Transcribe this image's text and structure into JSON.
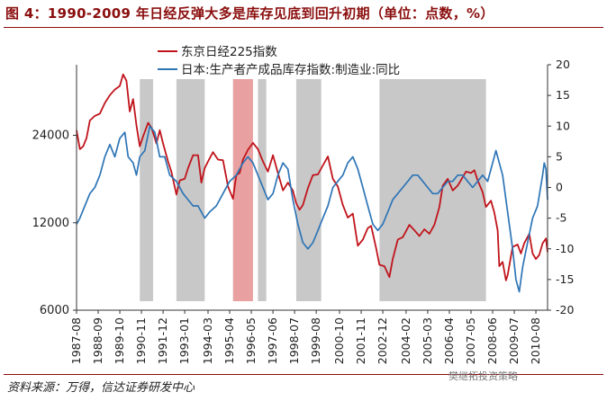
{
  "header": {
    "title": "图 4：1990-2009 年日经反弹大多是库存见底到回升初期（单位：点数，%）"
  },
  "footer": {
    "source": "资料来源：万得，信达证券研发中心",
    "watermark": "樊继拓投资策略"
  },
  "chart_data": {
    "type": "line",
    "title": "图 4：1990-2009 年日经反弹大多是库存见底到回升初期（单位：点数，%）",
    "colors": {
      "nikkei": "#c0141b",
      "inventory": "#2e75b6",
      "shade": "#c8c8c8",
      "highlight": "#e8a0a0"
    },
    "x_tick_labels": [
      "1987-08",
      "1988-09",
      "1989-10",
      "1990-11",
      "1991-12",
      "1993-01",
      "1994-03",
      "1995-04",
      "1996-05",
      "1997-06",
      "1998-07",
      "1999-08",
      "2000-10",
      "2001-11",
      "2002-12",
      "2004-02",
      "2005-03",
      "2006-04",
      "2007-05",
      "2008-06",
      "2009-07",
      "2010-08"
    ],
    "x_range": [
      "1987-08",
      "2011-03"
    ],
    "left_axis": {
      "scale": "log",
      "ticks": [
        6000,
        12000,
        24000
      ],
      "range": [
        6000,
        42000
      ]
    },
    "right_axis": {
      "ticks": [
        20,
        15,
        10,
        5,
        0,
        -5,
        -10,
        -15,
        -20
      ],
      "range": [
        -20,
        20
      ]
    },
    "legend": [
      "东京日经225指数",
      "日本:生产者产成品库存指数:制造业:同比"
    ],
    "legend_position": "top-center",
    "shaded_periods": [
      {
        "start": "1990-10",
        "end": "1991-06",
        "highlight": false
      },
      {
        "start": "1992-08",
        "end": "1994-01",
        "highlight": false
      },
      {
        "start": "1995-06",
        "end": "1996-06",
        "highlight": true
      },
      {
        "start": "1996-09",
        "end": "1997-02",
        "highlight": false
      },
      {
        "start": "1998-08",
        "end": "1999-11",
        "highlight": false
      },
      {
        "start": "2002-10",
        "end": "2008-02",
        "highlight": false
      }
    ],
    "series": [
      {
        "name": "东京日经225指数",
        "axis": "left",
        "points": [
          [
            "1987-08",
            25000
          ],
          [
            "1987-10",
            21500
          ],
          [
            "1987-12",
            22000
          ],
          [
            "1988-02",
            23500
          ],
          [
            "1988-04",
            27000
          ],
          [
            "1988-07",
            28000
          ],
          [
            "1988-10",
            28500
          ],
          [
            "1989-01",
            31000
          ],
          [
            "1989-04",
            33000
          ],
          [
            "1989-07",
            34500
          ],
          [
            "1989-10",
            35500
          ],
          [
            "1989-12",
            38900
          ],
          [
            "1990-02",
            37000
          ],
          [
            "1990-04",
            29000
          ],
          [
            "1990-06",
            32000
          ],
          [
            "1990-08",
            26000
          ],
          [
            "1990-10",
            22000
          ],
          [
            "1990-12",
            23800
          ],
          [
            "1991-03",
            26500
          ],
          [
            "1991-05",
            25500
          ],
          [
            "1991-08",
            22500
          ],
          [
            "1991-10",
            25000
          ],
          [
            "1991-12",
            22500
          ],
          [
            "1992-03",
            19500
          ],
          [
            "1992-05",
            18000
          ],
          [
            "1992-08",
            15000
          ],
          [
            "1992-10",
            16800
          ],
          [
            "1993-01",
            17000
          ],
          [
            "1993-03",
            18500
          ],
          [
            "1993-06",
            20500
          ],
          [
            "1993-09",
            20500
          ],
          [
            "1993-11",
            16500
          ],
          [
            "1994-01",
            18500
          ],
          [
            "1994-03",
            19500
          ],
          [
            "1994-06",
            21000
          ],
          [
            "1994-09",
            19800
          ],
          [
            "1994-12",
            19700
          ],
          [
            "1995-03",
            16000
          ],
          [
            "1995-06",
            14500
          ],
          [
            "1995-08",
            17500
          ],
          [
            "1995-10",
            17800
          ],
          [
            "1995-12",
            19800
          ],
          [
            "1996-03",
            21400
          ],
          [
            "1996-06",
            22600
          ],
          [
            "1996-09",
            21500
          ],
          [
            "1996-12",
            19500
          ],
          [
            "1997-03",
            18000
          ],
          [
            "1997-06",
            20500
          ],
          [
            "1997-09",
            17800
          ],
          [
            "1997-12",
            15500
          ],
          [
            "1998-03",
            16500
          ],
          [
            "1998-06",
            15500
          ],
          [
            "1998-08",
            14000
          ],
          [
            "1998-10",
            13300
          ],
          [
            "1998-12",
            13800
          ],
          [
            "1999-03",
            15800
          ],
          [
            "1999-06",
            17500
          ],
          [
            "1999-09",
            17600
          ],
          [
            "1999-12",
            18900
          ],
          [
            "2000-03",
            20300
          ],
          [
            "2000-06",
            17000
          ],
          [
            "2000-09",
            16000
          ],
          [
            "2000-12",
            13800
          ],
          [
            "2001-03",
            12500
          ],
          [
            "2001-06",
            12900
          ],
          [
            "2001-09",
            10000
          ],
          [
            "2001-12",
            10500
          ],
          [
            "2002-03",
            11500
          ],
          [
            "2002-05",
            11700
          ],
          [
            "2002-08",
            9800
          ],
          [
            "2002-10",
            8600
          ],
          [
            "2003-01",
            8500
          ],
          [
            "2003-04",
            7800
          ],
          [
            "2003-06",
            9000
          ],
          [
            "2003-09",
            10500
          ],
          [
            "2003-12",
            10700
          ],
          [
            "2004-04",
            11800
          ],
          [
            "2004-07",
            11300
          ],
          [
            "2004-10",
            10800
          ],
          [
            "2005-01",
            11400
          ],
          [
            "2005-04",
            11000
          ],
          [
            "2005-07",
            11800
          ],
          [
            "2005-10",
            13600
          ],
          [
            "2005-12",
            16100
          ],
          [
            "2006-03",
            17000
          ],
          [
            "2006-06",
            15500
          ],
          [
            "2006-09",
            16100
          ],
          [
            "2006-12",
            17200
          ],
          [
            "2007-02",
            18000
          ],
          [
            "2007-05",
            17800
          ],
          [
            "2007-07",
            18200
          ],
          [
            "2007-09",
            16800
          ],
          [
            "2007-12",
            15300
          ],
          [
            "2008-02",
            13600
          ],
          [
            "2008-05",
            14300
          ],
          [
            "2008-07",
            13000
          ],
          [
            "2008-09",
            11300
          ],
          [
            "2008-10",
            8500
          ],
          [
            "2008-12",
            8800
          ],
          [
            "2009-02",
            7600
          ],
          [
            "2009-03",
            7900
          ],
          [
            "2009-06",
            9900
          ],
          [
            "2009-09",
            10100
          ],
          [
            "2009-11",
            9400
          ],
          [
            "2010-01",
            10200
          ],
          [
            "2010-04",
            11000
          ],
          [
            "2010-06",
            9400
          ],
          [
            "2010-08",
            9000
          ],
          [
            "2010-10",
            9300
          ],
          [
            "2010-12",
            10200
          ],
          [
            "2011-02",
            10600
          ],
          [
            "2011-03",
            9500
          ]
        ]
      },
      {
        "name": "日本:生产者产成品库存指数:制造业:同比",
        "axis": "right",
        "points": [
          [
            "1987-08",
            -6
          ],
          [
            "1987-10",
            -5
          ],
          [
            "1988-01",
            -3
          ],
          [
            "1988-04",
            -1
          ],
          [
            "1988-07",
            0
          ],
          [
            "1988-10",
            2
          ],
          [
            "1989-01",
            5
          ],
          [
            "1989-04",
            7
          ],
          [
            "1989-07",
            5
          ],
          [
            "1989-10",
            8
          ],
          [
            "1990-01",
            9
          ],
          [
            "1990-03",
            5
          ],
          [
            "1990-06",
            4
          ],
          [
            "1990-08",
            2
          ],
          [
            "1990-10",
            5
          ],
          [
            "1991-01",
            6
          ],
          [
            "1991-04",
            10
          ],
          [
            "1991-07",
            9
          ],
          [
            "1991-10",
            5
          ],
          [
            "1992-01",
            5
          ],
          [
            "1992-04",
            2
          ],
          [
            "1992-08",
            1
          ],
          [
            "1992-12",
            -1
          ],
          [
            "1993-03",
            -2
          ],
          [
            "1993-06",
            -3
          ],
          [
            "1993-09",
            -3
          ],
          [
            "1994-01",
            -5
          ],
          [
            "1994-04",
            -4
          ],
          [
            "1994-08",
            -3
          ],
          [
            "1994-12",
            -1
          ],
          [
            "1995-04",
            1
          ],
          [
            "1995-08",
            2
          ],
          [
            "1995-12",
            4
          ],
          [
            "1996-03",
            5
          ],
          [
            "1996-06",
            4
          ],
          [
            "1996-09",
            2
          ],
          [
            "1996-12",
            0
          ],
          [
            "1997-03",
            -2
          ],
          [
            "1997-06",
            -1
          ],
          [
            "1997-09",
            2
          ],
          [
            "1997-12",
            4
          ],
          [
            "1998-03",
            3
          ],
          [
            "1998-06",
            -2
          ],
          [
            "1998-09",
            -6
          ],
          [
            "1998-12",
            -9
          ],
          [
            "1999-03",
            -10
          ],
          [
            "1999-06",
            -9
          ],
          [
            "1999-09",
            -7
          ],
          [
            "1999-12",
            -5
          ],
          [
            "2000-03",
            -3
          ],
          [
            "2000-06",
            0
          ],
          [
            "2000-09",
            1
          ],
          [
            "2000-12",
            2
          ],
          [
            "2001-03",
            4
          ],
          [
            "2001-06",
            5
          ],
          [
            "2001-09",
            3
          ],
          [
            "2001-12",
            0
          ],
          [
            "2002-03",
            -3
          ],
          [
            "2002-06",
            -6
          ],
          [
            "2002-09",
            -7
          ],
          [
            "2002-12",
            -6
          ],
          [
            "2003-03",
            -4
          ],
          [
            "2003-06",
            -2
          ],
          [
            "2003-09",
            -1
          ],
          [
            "2003-12",
            0
          ],
          [
            "2004-03",
            1
          ],
          [
            "2004-06",
            2
          ],
          [
            "2004-09",
            2
          ],
          [
            "2004-12",
            1
          ],
          [
            "2005-03",
            0
          ],
          [
            "2005-06",
            -1
          ],
          [
            "2005-09",
            -1
          ],
          [
            "2005-12",
            0
          ],
          [
            "2006-03",
            1
          ],
          [
            "2006-06",
            1
          ],
          [
            "2006-09",
            2
          ],
          [
            "2006-12",
            2
          ],
          [
            "2007-03",
            1
          ],
          [
            "2007-06",
            0
          ],
          [
            "2007-09",
            1
          ],
          [
            "2007-12",
            2
          ],
          [
            "2008-03",
            1
          ],
          [
            "2008-05",
            3
          ],
          [
            "2008-08",
            6
          ],
          [
            "2008-10",
            4
          ],
          [
            "2008-12",
            2
          ],
          [
            "2009-02",
            -2
          ],
          [
            "2009-04",
            -6
          ],
          [
            "2009-06",
            -10
          ],
          [
            "2009-08",
            -15
          ],
          [
            "2009-10",
            -17
          ],
          [
            "2009-12",
            -13
          ],
          [
            "2010-03",
            -9
          ],
          [
            "2010-06",
            -5
          ],
          [
            "2010-09",
            -3
          ],
          [
            "2010-12",
            2
          ],
          [
            "2011-01",
            4
          ],
          [
            "2011-02",
            3
          ],
          [
            "2011-03",
            -2
          ]
        ]
      }
    ]
  }
}
